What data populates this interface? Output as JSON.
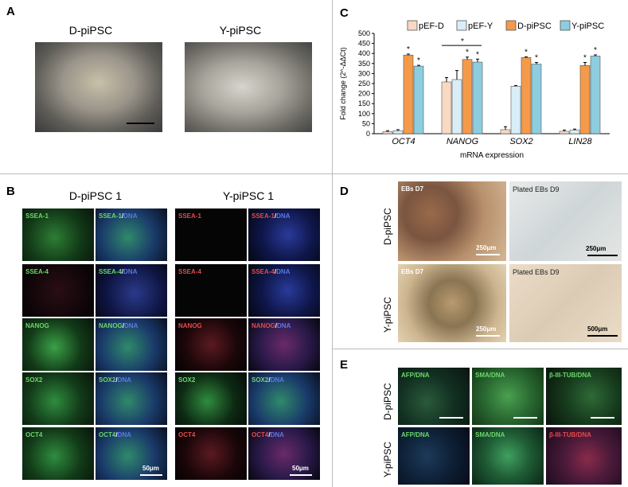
{
  "panelA": {
    "letter": "A",
    "left_title": "D-piPSC",
    "right_title": "Y-piPSC"
  },
  "panelB": {
    "letter": "B",
    "left_title": "D-piPSC 1",
    "right_title": "Y-piPSC 1",
    "left_tiles": [
      [
        "SSEA-1",
        "SSEA-1/DNA"
      ],
      [
        "SSEA-4",
        "SSEA-4/DNA"
      ],
      [
        "NANOG",
        "NANOG/DNA"
      ],
      [
        "SOX2",
        "SOX2/DNA"
      ],
      [
        "OCT4",
        "OCT4/DNA"
      ]
    ],
    "right_tiles": [
      [
        "SSEA-1",
        "SSEA-1/DNA"
      ],
      [
        "SSEA-4",
        "SSEA-4/DNA"
      ],
      [
        "NANOG",
        "NANOG/DNA"
      ],
      [
        "SOX2",
        "SOX2/DNA"
      ],
      [
        "OCT4",
        "OCT4/DNA"
      ]
    ],
    "scale_left": "50μm",
    "scale_right": "50μm"
  },
  "panelC": {
    "letter": "C"
  },
  "panelD": {
    "letter": "D",
    "row1_label": "D-piPSC",
    "row2_label": "Y-piPSC",
    "tiles": [
      {
        "label": "EBs D7",
        "scale": "250μm"
      },
      {
        "label": "Plated EBs D9",
        "scale": "250μm"
      },
      {
        "label": "EBs D7",
        "scale": "250μm"
      },
      {
        "label": "Plated EBs D9",
        "scale": "500μm"
      }
    ]
  },
  "panelE": {
    "letter": "E",
    "row1_label": "D-piPSC",
    "row2_label": "Y-piPSC",
    "col_labels": [
      "AFP/DNA",
      "SMA/DNA",
      "β-III-TUB/DNA"
    ]
  },
  "chart_data": {
    "type": "bar",
    "categories": [
      "OCT4",
      "NANOG",
      "SOX2",
      "LIN28"
    ],
    "series": [
      {
        "name": "pEF-D",
        "color": "#f9d9c4",
        "values": [
          10,
          258,
          20,
          12
        ]
      },
      {
        "name": "pEF-Y",
        "color": "#d9eef7",
        "values": [
          15,
          270,
          237,
          18
        ]
      },
      {
        "name": "D-piPSC",
        "color": "#f49a4a",
        "values": [
          392,
          370,
          380,
          340
        ]
      },
      {
        "name": "Y-piPSC",
        "color": "#8dcde0",
        "values": [
          337,
          357,
          347,
          387
        ]
      }
    ],
    "errors": [
      [
        5,
        22,
        15,
        6
      ],
      [
        5,
        45,
        3,
        5
      ],
      [
        5,
        12,
        3,
        15
      ],
      [
        4,
        15,
        8,
        6
      ]
    ],
    "xlabel": "mRNA expression",
    "ylabel": "Fold change (2^-ΔΔCt)",
    "ylim": [
      0,
      500
    ],
    "yticks": [
      0,
      50,
      100,
      150,
      200,
      250,
      300,
      350,
      400,
      450,
      500
    ],
    "significance": "*",
    "legend": "top",
    "grid": false
  }
}
